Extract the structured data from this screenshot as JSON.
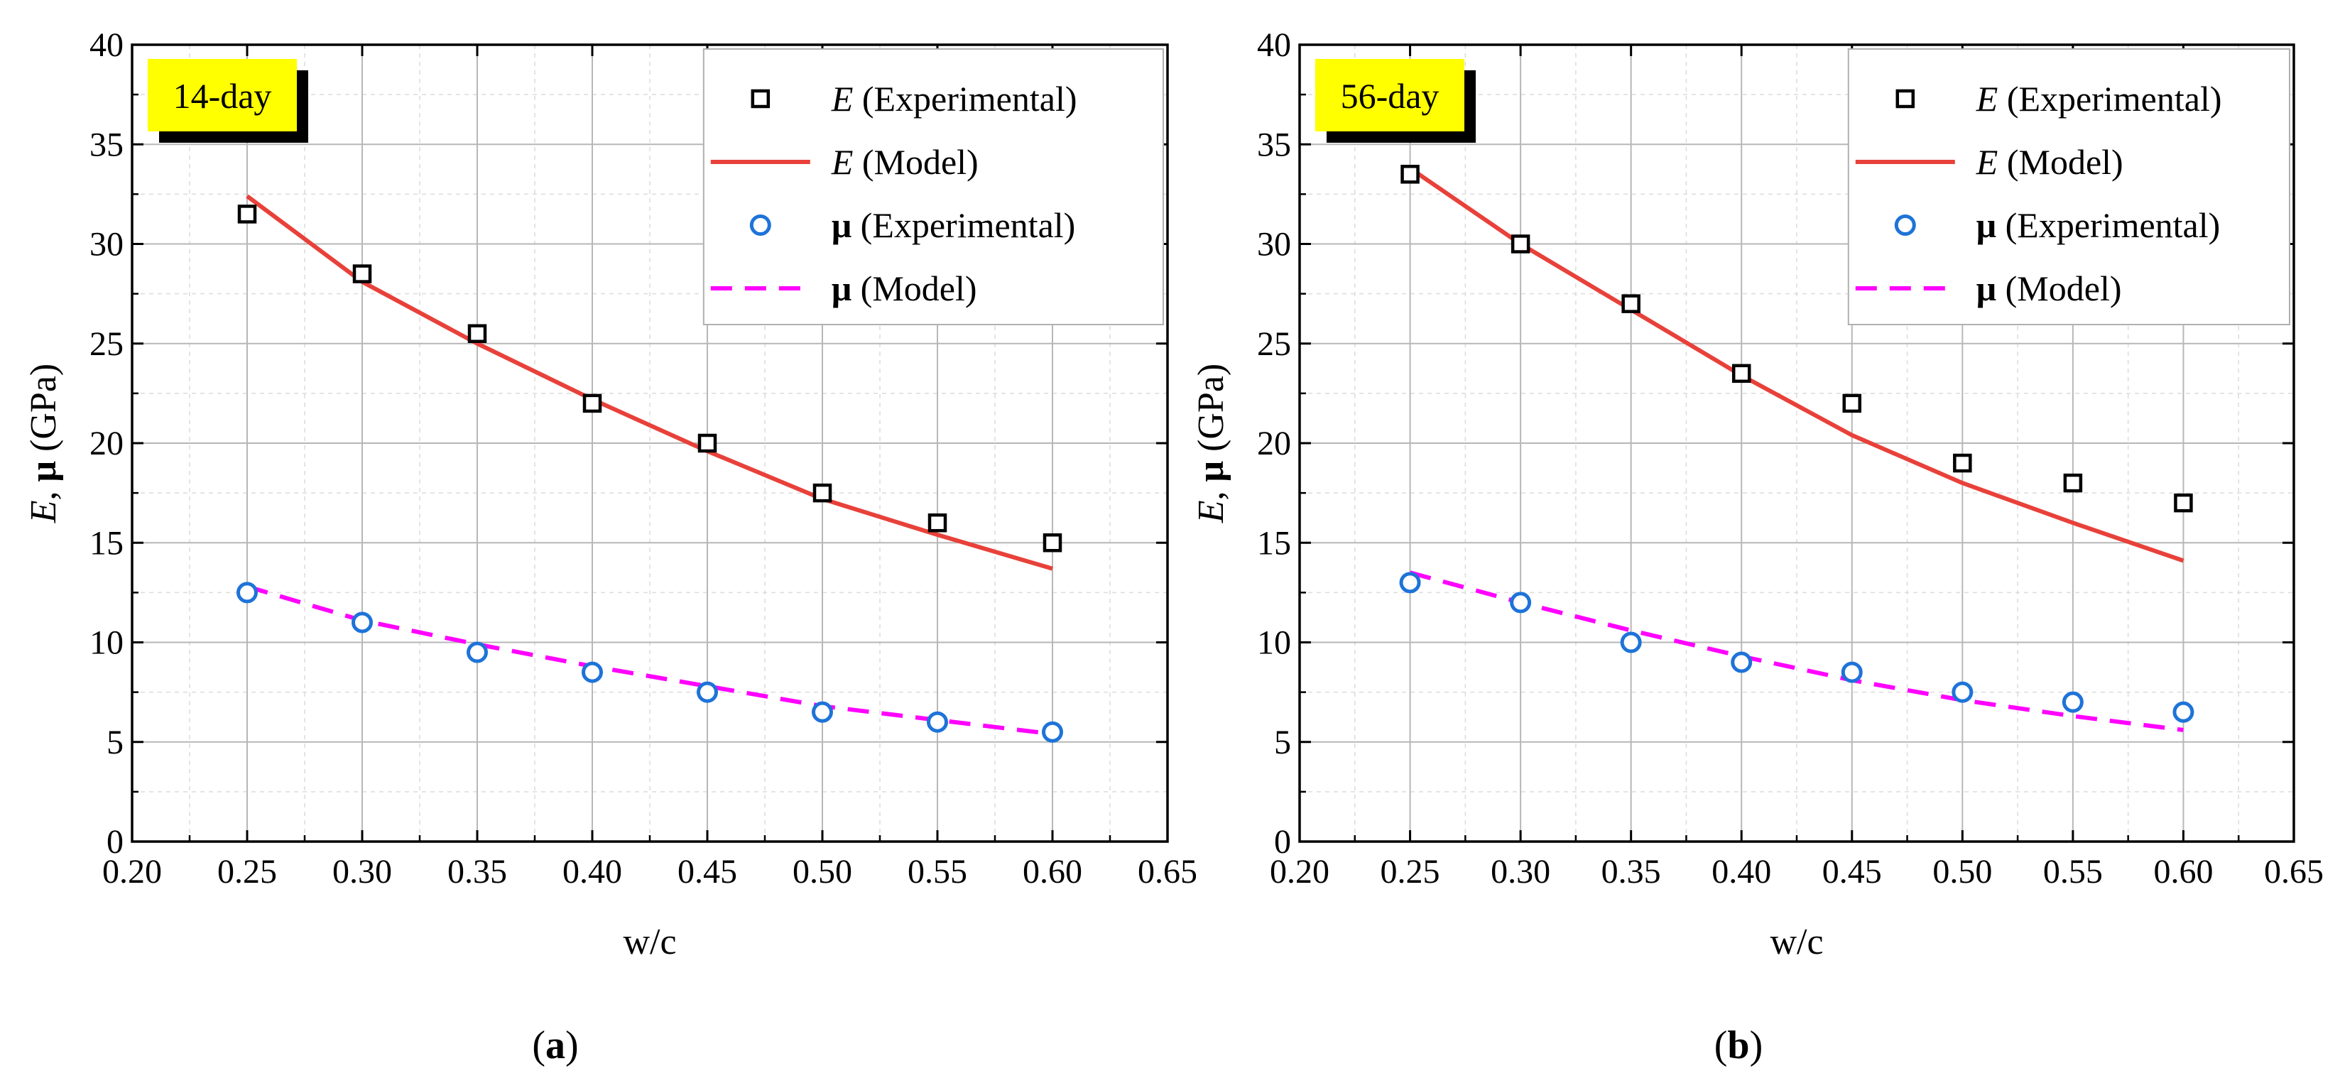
{
  "colors": {
    "experimental_E": "#000000",
    "model_E": "#e8413a",
    "experimental_mu": "#1e73d8",
    "model_mu": "#ff00ff",
    "badge_fill": "#ffff00",
    "badge_shadow": "#000000"
  },
  "chart_data": [
    {
      "type": "line",
      "title": "",
      "period_label": "14-day",
      "caption_letter": "a",
      "xlabel": "w/c",
      "ylabel_parts": [
        "E",
        ", ",
        "μ",
        " (GPa)"
      ],
      "xlim": [
        0.2,
        0.65
      ],
      "ylim": [
        0,
        40
      ],
      "xticks": [
        "0.20",
        "0.25",
        "0.30",
        "0.35",
        "0.40",
        "0.45",
        "0.50",
        "0.55",
        "0.60",
        "0.65"
      ],
      "yticks": [
        "0",
        "5",
        "10",
        "15",
        "20",
        "25",
        "30",
        "35",
        "40"
      ],
      "grid": true,
      "legend_position": "top-right",
      "x": [
        0.25,
        0.3,
        0.35,
        0.4,
        0.45,
        0.5,
        0.55,
        0.6
      ],
      "series": [
        {
          "name": "E (Experimental)",
          "symbol": "E",
          "suffix": " (Experimental)",
          "style": "square",
          "values": [
            31.5,
            28.5,
            25.5,
            22.0,
            20.0,
            17.5,
            16.0,
            15.0
          ]
        },
        {
          "name": "E (Model)",
          "symbol": "E",
          "suffix": " (Model)",
          "style": "solid",
          "values": [
            32.4,
            28.1,
            25.0,
            22.2,
            19.6,
            17.2,
            15.4,
            13.7
          ]
        },
        {
          "name": "μ (Experimental)",
          "symbol": "μ",
          "suffix": " (Experimental)",
          "style": "circle",
          "values": [
            12.5,
            11.0,
            9.5,
            8.5,
            7.5,
            6.5,
            6.0,
            5.5
          ]
        },
        {
          "name": "μ (Model)",
          "symbol": "μ",
          "suffix": " (Model)",
          "style": "dashed",
          "values": [
            12.8,
            11.1,
            9.9,
            8.8,
            7.8,
            6.8,
            6.1,
            5.4
          ]
        }
      ]
    },
    {
      "type": "line",
      "title": "",
      "period_label": "56-day",
      "caption_letter": "b",
      "xlabel": "w/c",
      "ylabel_parts": [
        "E",
        ", ",
        "μ",
        " (GPa)"
      ],
      "xlim": [
        0.2,
        0.65
      ],
      "ylim": [
        0,
        40
      ],
      "xticks": [
        "0.20",
        "0.25",
        "0.30",
        "0.35",
        "0.40",
        "0.45",
        "0.50",
        "0.55",
        "0.60",
        "0.65"
      ],
      "yticks": [
        "0",
        "5",
        "10",
        "15",
        "20",
        "25",
        "30",
        "35",
        "40"
      ],
      "grid": true,
      "legend_position": "top-right",
      "x": [
        0.25,
        0.3,
        0.35,
        0.4,
        0.45,
        0.5,
        0.55,
        0.6
      ],
      "series": [
        {
          "name": "E (Experimental)",
          "symbol": "E",
          "suffix": " (Experimental)",
          "style": "square",
          "values": [
            33.5,
            30.0,
            27.0,
            23.5,
            22.0,
            19.0,
            18.0,
            17.0
          ]
        },
        {
          "name": "E (Model)",
          "symbol": "E",
          "suffix": " (Model)",
          "style": "solid",
          "values": [
            33.8,
            30.0,
            26.7,
            23.4,
            20.4,
            18.0,
            16.0,
            14.1
          ]
        },
        {
          "name": "μ (Experimental)",
          "symbol": "μ",
          "suffix": " (Experimental)",
          "style": "circle",
          "values": [
            13.0,
            12.0,
            10.0,
            9.0,
            8.5,
            7.5,
            7.0,
            6.5
          ]
        },
        {
          "name": "μ (Model)",
          "symbol": "μ",
          "suffix": " (Model)",
          "style": "dashed",
          "values": [
            13.5,
            12.0,
            10.6,
            9.3,
            8.1,
            7.1,
            6.3,
            5.6
          ]
        }
      ]
    }
  ]
}
